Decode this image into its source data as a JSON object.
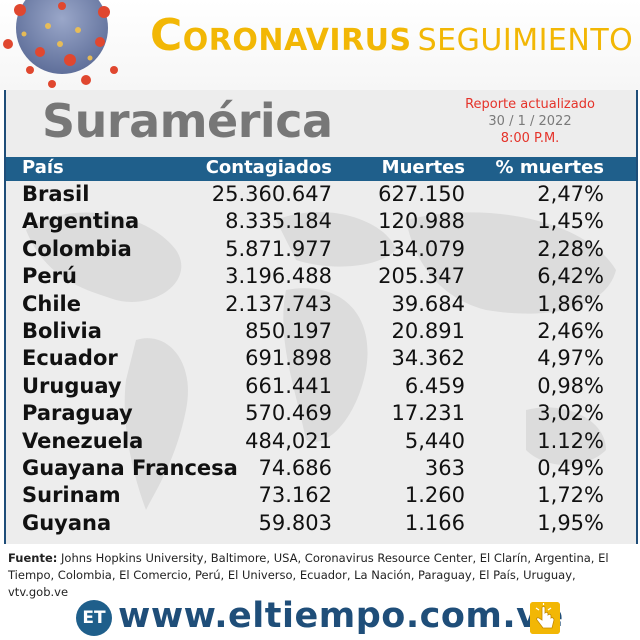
{
  "header": {
    "title_initial": "C",
    "title_rest": "ORONAVIRUS",
    "title_sub": "SEGUIMIENTO"
  },
  "region": "Suramérica",
  "report": {
    "line1": "Reporte actualizado",
    "line2": "30 / 1 / 2022",
    "line3": "8:00 P.M."
  },
  "table": {
    "columns": [
      "País",
      "Contagiados",
      "Muertes",
      "% muertes"
    ],
    "rows": [
      {
        "country": "Brasil",
        "cases": "25.360.647",
        "deaths": "627.150",
        "pct": "2,47%"
      },
      {
        "country": "Argentina",
        "cases": "8.335.184",
        "deaths": "120.988",
        "pct": "1,45%"
      },
      {
        "country": "Colombia",
        "cases": "5.871.977",
        "deaths": "134.079",
        "pct": "2,28%"
      },
      {
        "country": "Perú",
        "cases": "3.196.488",
        "deaths": "205.347",
        "pct": "6,42%"
      },
      {
        "country": "Chile",
        "cases": "2.137.743",
        "deaths": "39.684",
        "pct": "1,86%"
      },
      {
        "country": "Bolivia",
        "cases": "850.197",
        "deaths": "20.891",
        "pct": "2,46%"
      },
      {
        "country": "Ecuador",
        "cases": "691.898",
        "deaths": "34.362",
        "pct": "4,97%"
      },
      {
        "country": "Uruguay",
        "cases": "661.441",
        "deaths": "6.459",
        "pct": "0,98%"
      },
      {
        "country": "Paraguay",
        "cases": "570.469",
        "deaths": "17.231",
        "pct": "3,02%"
      },
      {
        "country": "Venezuela",
        "cases": "484,021",
        "deaths": "5,440",
        "pct": "1.12%"
      },
      {
        "country": "Guayana Francesa",
        "cases": "74.686",
        "deaths": "363",
        "pct": "0,49%"
      },
      {
        "country": "Surinam",
        "cases": "73.162",
        "deaths": "1.260",
        "pct": "1,72%"
      },
      {
        "country": "Guyana",
        "cases": "59.803",
        "deaths": "1.166",
        "pct": "1,95%"
      }
    ]
  },
  "footer": {
    "source_label": "Fuente:",
    "source_text": " Johns Hopkins University, Baltimore, USA, Coronavirus Resource Center,  El Clarín, Argentina, El Tiempo, Colombia, El Comercio, Perú, El Universo, Ecuador, La Nación, Paraguay, El País, Uruguay, vtv.gob.ve",
    "logo_text": "ET",
    "website": "www.eltiempo.com.ve"
  },
  "colors": {
    "accent_yellow": "#f2b705",
    "header_blue": "#1f5f8b",
    "report_red": "#e5332a"
  },
  "icons": [
    "coronavirus-illustration",
    "world-map-background",
    "hand-pointer-icon"
  ]
}
